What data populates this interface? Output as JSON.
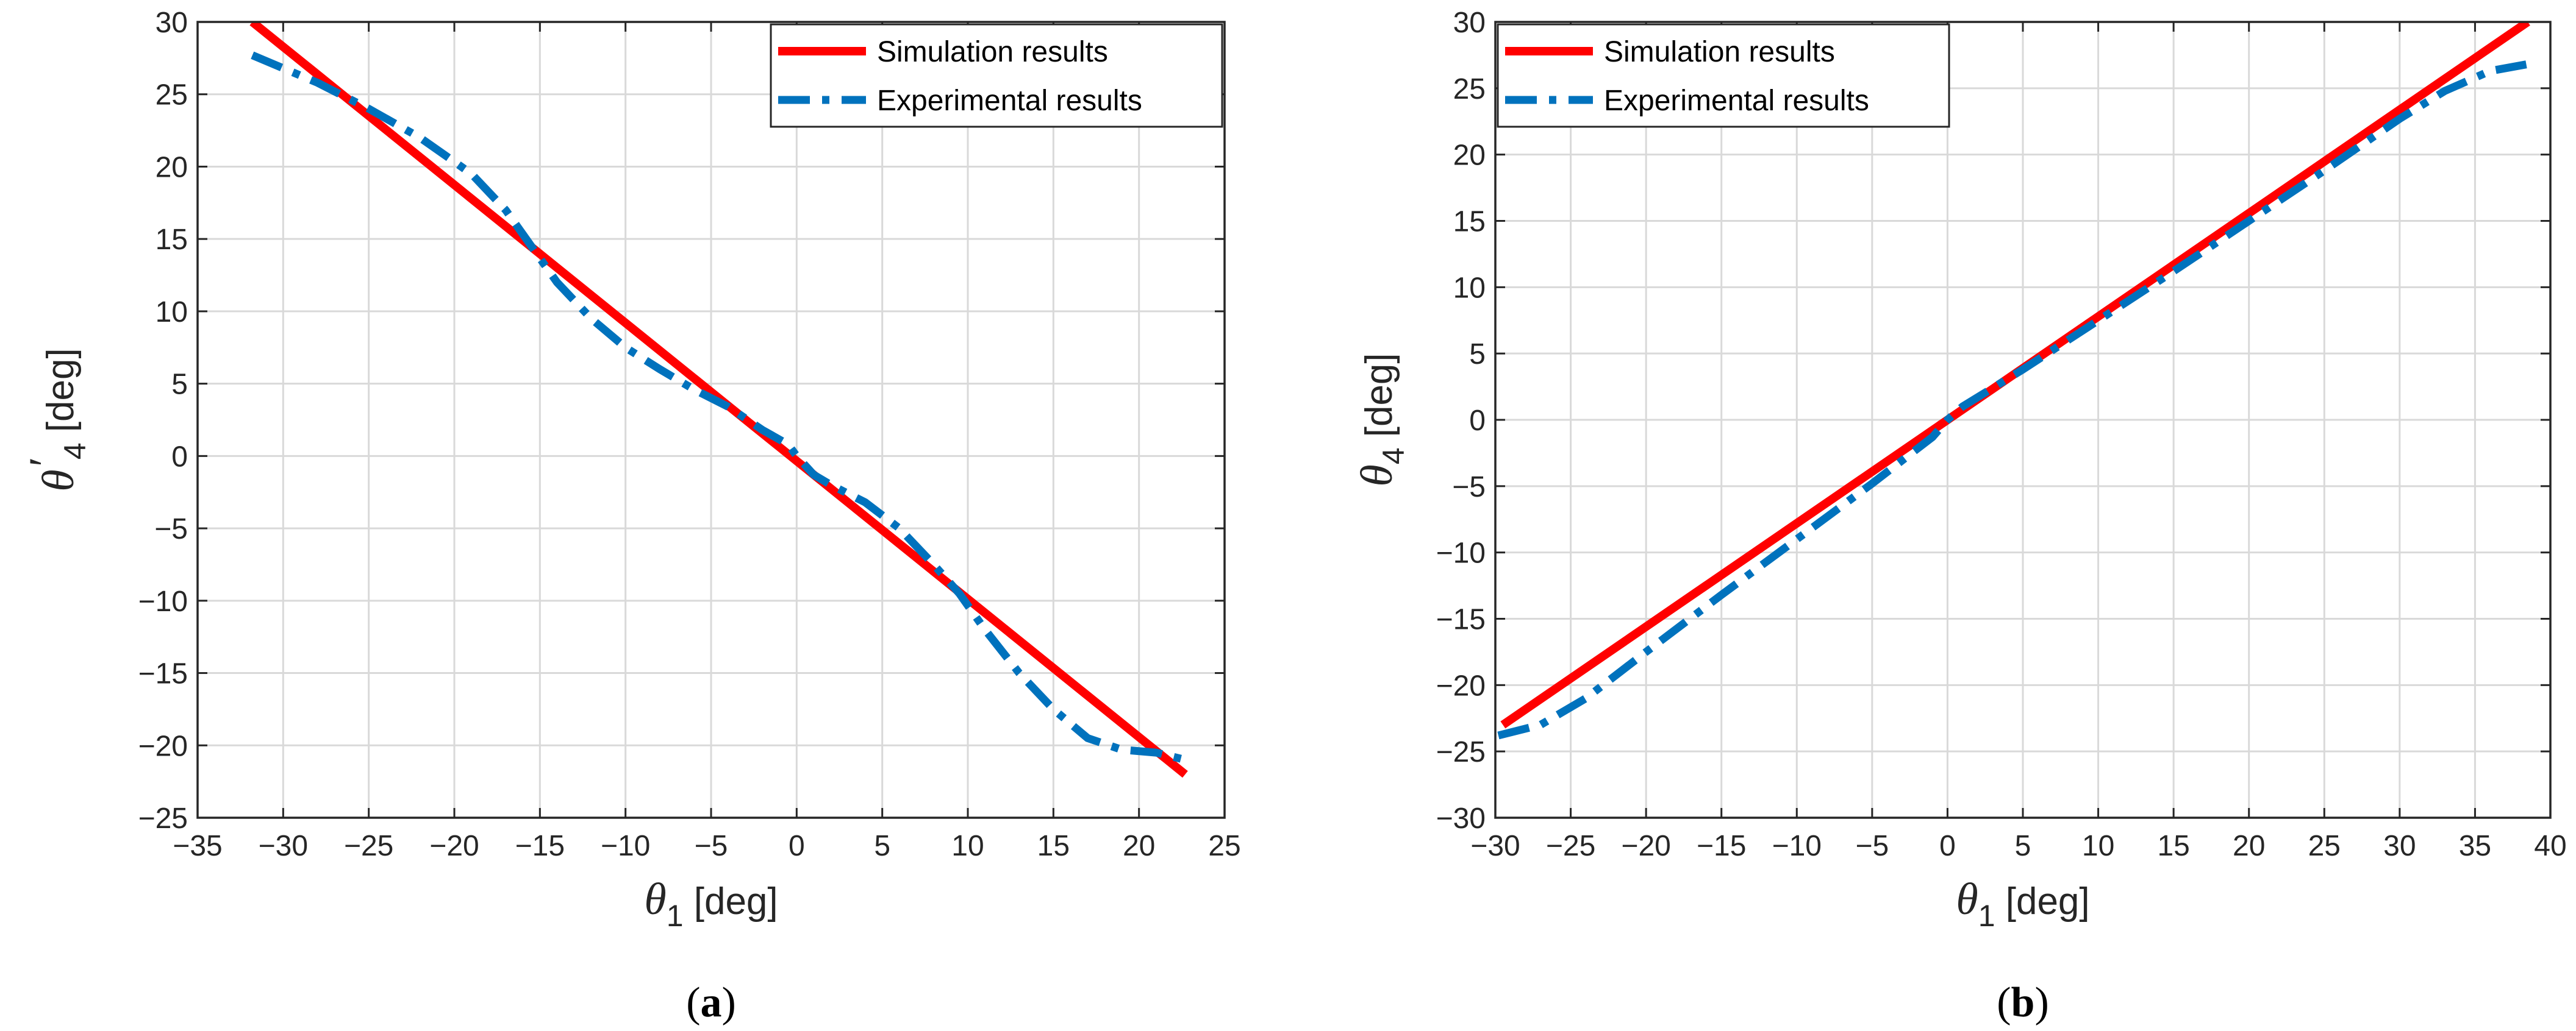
{
  "chart_data": [
    {
      "panel": "a",
      "panel_label": "(a)",
      "type": "line",
      "xlabel": {
        "symbol": "θ",
        "sub": "1",
        "unit": " [deg]"
      },
      "ylabel": {
        "symbol": "θ",
        "prime": "′",
        "sub": "4",
        "unit": " [deg]"
      },
      "xlim": [
        -35,
        25
      ],
      "ylim": [
        -25,
        30
      ],
      "xticks": [
        -35,
        -30,
        -25,
        -20,
        -15,
        -10,
        -5,
        0,
        5,
        10,
        15,
        20,
        25
      ],
      "yticks": [
        -25,
        -20,
        -15,
        -10,
        -5,
        0,
        5,
        10,
        15,
        20,
        25,
        30
      ],
      "grid": true,
      "legend_position": "top-right",
      "series": [
        {
          "name": "Simulation results",
          "style": "solid",
          "color": "#ff0000",
          "x": [
            -31.8,
            22.7
          ],
          "y": [
            30,
            -22
          ]
        },
        {
          "name": "Experimental results",
          "style": "dashdot",
          "color": "#0072bd",
          "x": [
            -31.8,
            -28,
            -25,
            -22,
            -19,
            -17,
            -15.5,
            -14,
            -12,
            -10,
            -8,
            -6,
            -4,
            -2,
            -0.5,
            0,
            1,
            2,
            4,
            6,
            8,
            9.5,
            11,
            13,
            15,
            17,
            19,
            21,
            22.7
          ],
          "y": [
            27.7,
            25.8,
            24,
            22,
            19.5,
            17,
            14.5,
            12,
            9.5,
            7.5,
            6,
            4.6,
            3.4,
            1.8,
            0.8,
            0,
            -1.3,
            -2,
            -3.2,
            -5,
            -7.5,
            -9.5,
            -12,
            -15,
            -17.5,
            -19.5,
            -20.3,
            -20.5,
            -21
          ]
        }
      ]
    },
    {
      "panel": "b",
      "panel_label": "(b)",
      "type": "line",
      "xlabel": {
        "symbol": "θ",
        "sub": "1",
        "unit": " [deg]"
      },
      "ylabel": {
        "symbol": "θ",
        "prime": "",
        "sub": "4",
        "unit": " [deg]"
      },
      "xlim": [
        -30,
        40
      ],
      "ylim": [
        -30,
        30
      ],
      "xticks": [
        -30,
        -25,
        -20,
        -15,
        -10,
        -5,
        0,
        5,
        10,
        15,
        20,
        25,
        30,
        35,
        40
      ],
      "yticks": [
        -30,
        -25,
        -20,
        -15,
        -10,
        -5,
        0,
        5,
        10,
        15,
        20,
        25,
        30
      ],
      "grid": true,
      "legend_position": "top-left",
      "series": [
        {
          "name": "Simulation results",
          "style": "solid",
          "color": "#ff0000",
          "x": [
            -29.5,
            38.5
          ],
          "y": [
            -23,
            30
          ]
        },
        {
          "name": "Experimental results",
          "style": "dashdot",
          "color": "#0072bd",
          "x": [
            -29.8,
            -27,
            -24,
            -20,
            -15,
            -10,
            -5,
            -1,
            0,
            1,
            5,
            10,
            15,
            20,
            25,
            30,
            33,
            36,
            38.4
          ],
          "y": [
            -23.8,
            -23,
            -21,
            -17.5,
            -13.2,
            -9,
            -4.8,
            -1.3,
            0,
            1,
            3.8,
            7.5,
            11.2,
            15,
            18.8,
            22.7,
            24.8,
            26.3,
            26.8
          ]
        }
      ]
    }
  ]
}
